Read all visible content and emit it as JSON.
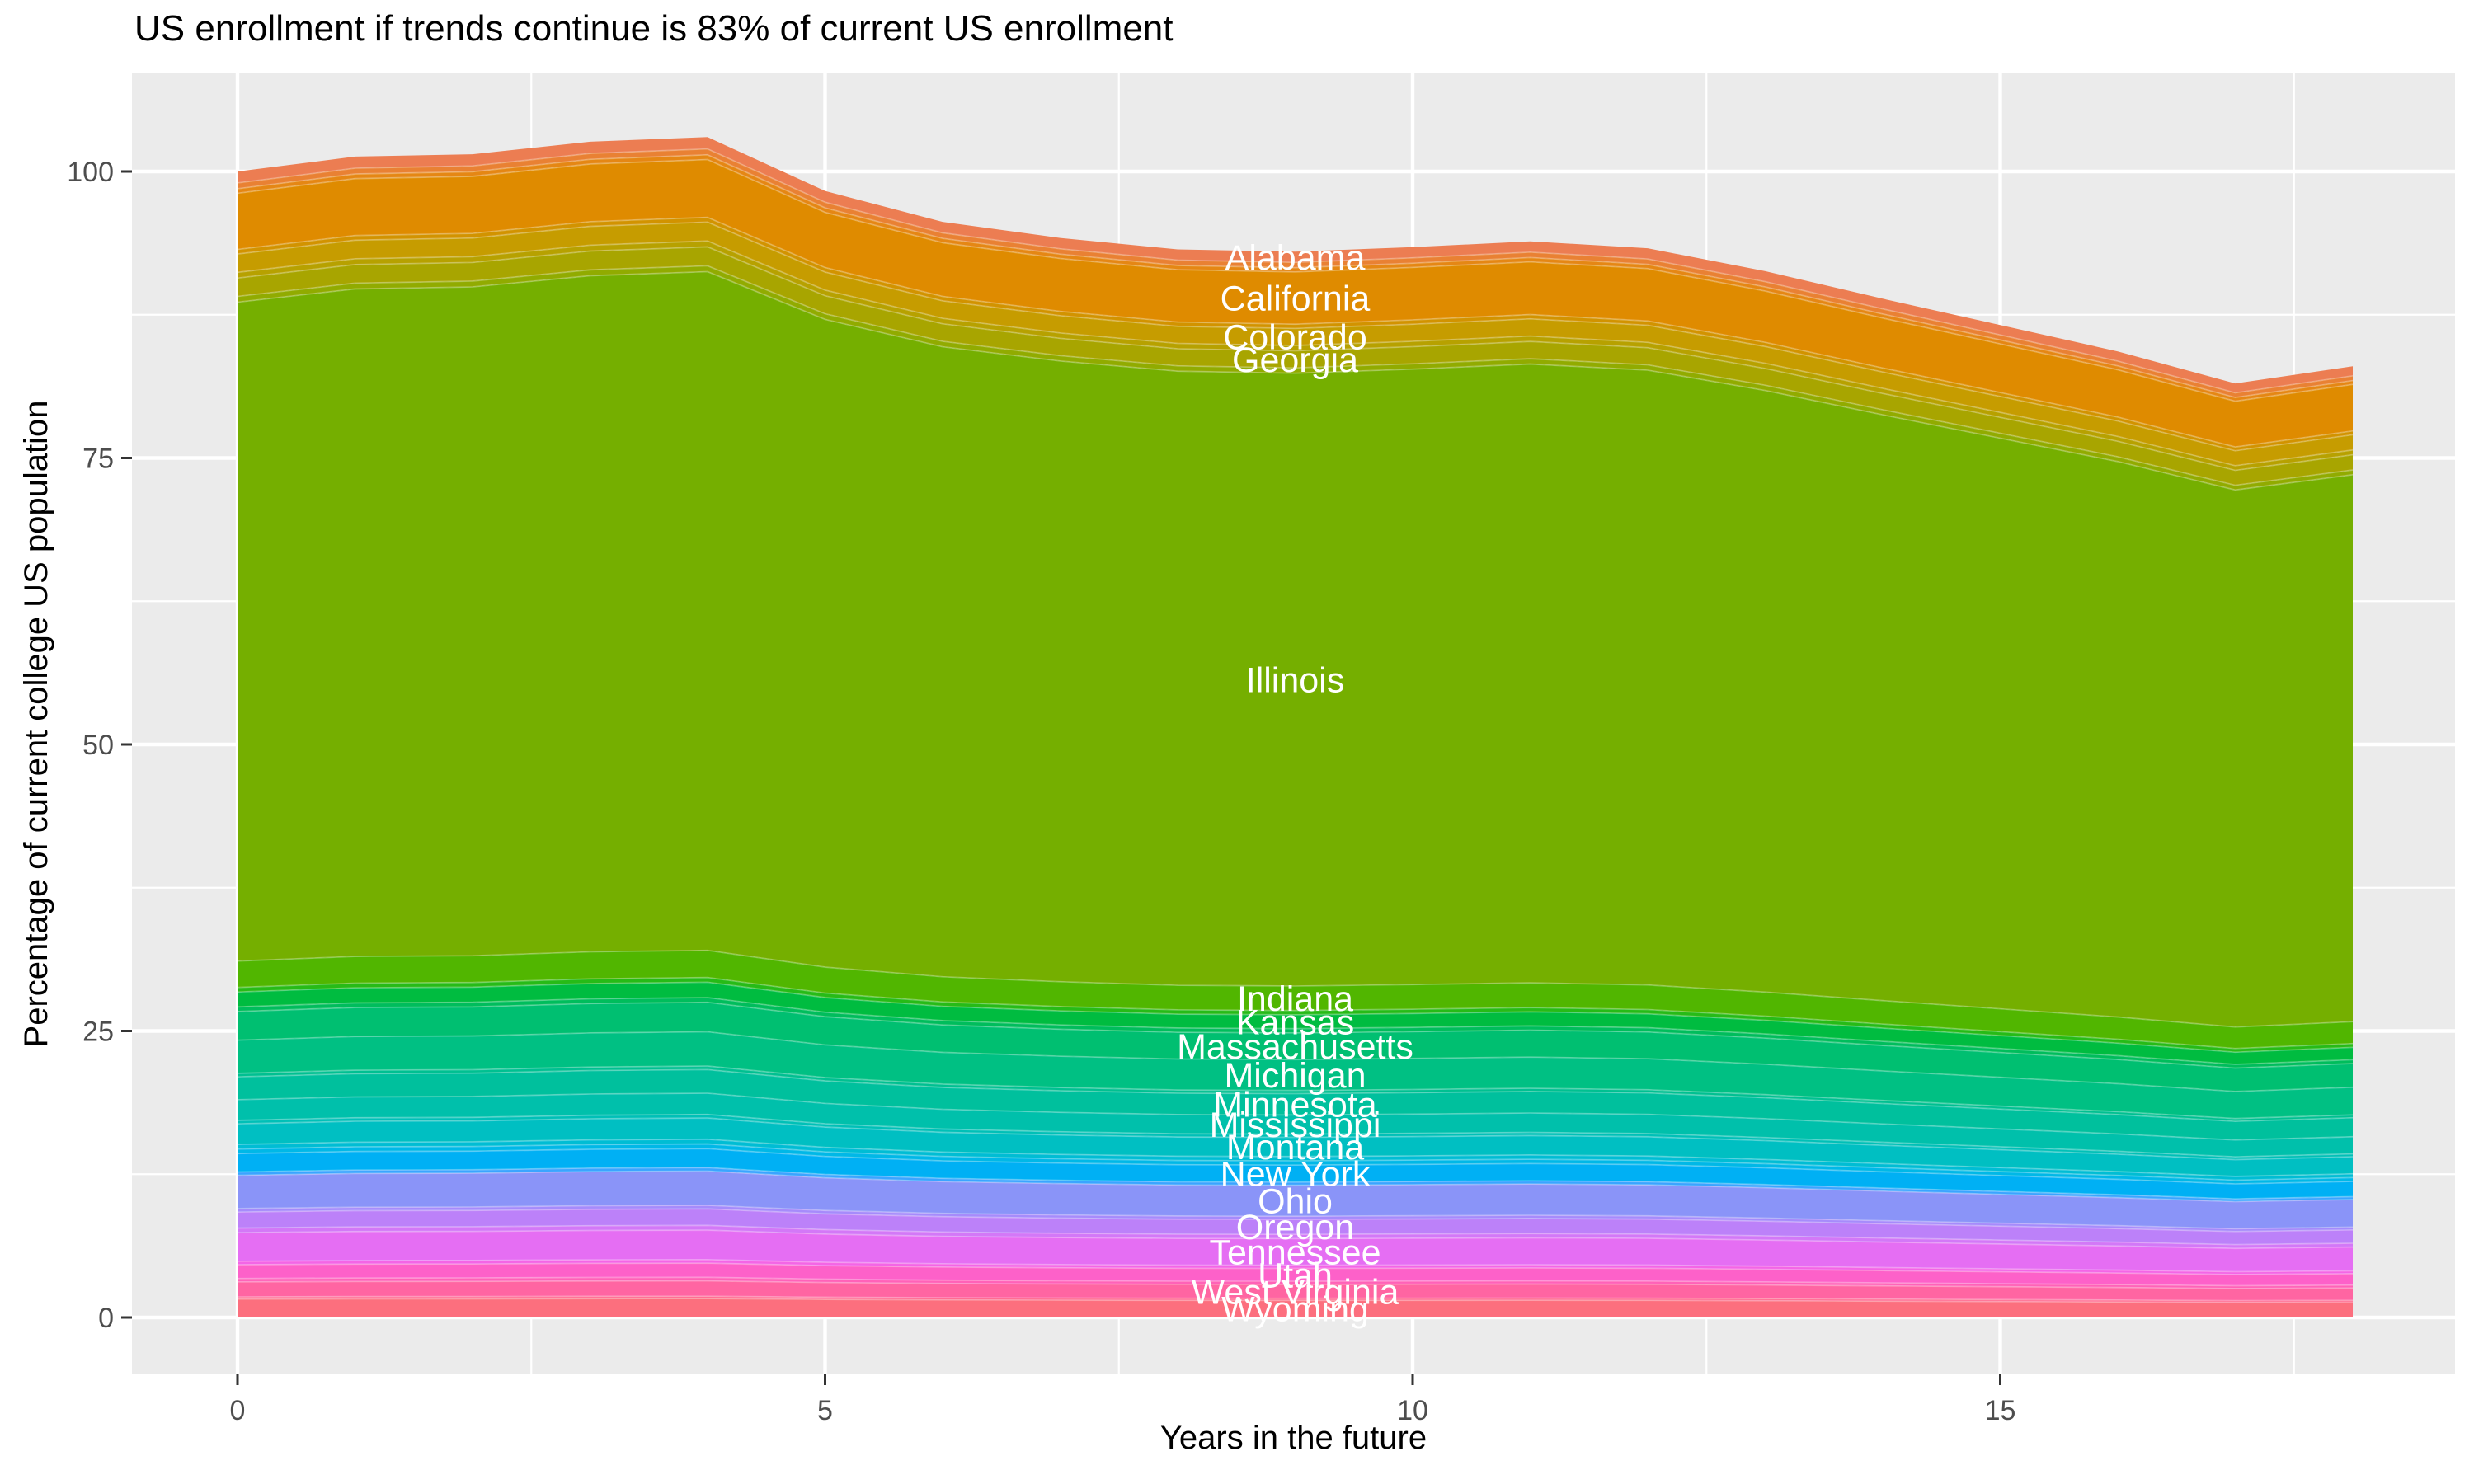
{
  "chart_data": {
    "type": "area",
    "stacked": true,
    "title": "US enrollment if trends continue is 83% of current US enrollment",
    "xlabel": "Years in the future",
    "ylabel": "Percentage of current college US population",
    "x_ticks": [
      0,
      5,
      10,
      15
    ],
    "y_ticks": [
      0,
      25,
      50,
      75,
      100
    ],
    "xlim": [
      -0.9,
      18.9
    ],
    "ylim": [
      -5.2,
      108.7
    ],
    "grid": true,
    "legend_position": "none",
    "panel_bg": "#EBEBEB",
    "grid_color": "#FFFFFF",
    "tick_label_color": "#4D4D4D",
    "tick_mark_color": "#333333",
    "state_label_color": "#FFFFFF",
    "label_x_year": 9,
    "note": "Stacked shares of current US college population by state; band value(x) = share_at_year0 * total_percent[x] / 100. Unnamed entries are thin unlabeled state bands visible as stripes.",
    "x": [
      0,
      1,
      2,
      3,
      4,
      5,
      6,
      7,
      8,
      9,
      10,
      11,
      12,
      13,
      14,
      15,
      16,
      17,
      18
    ],
    "total_percent": [
      100.0,
      101.3,
      101.5,
      102.6,
      103.0,
      98.3,
      95.6,
      94.2,
      93.2,
      93.0,
      93.4,
      93.9,
      93.3,
      91.3,
      88.9,
      86.6,
      84.3,
      81.5,
      83.0
    ],
    "end_percent_of_current": 83,
    "series": [
      {
        "name": "Alabama",
        "share_at_year0": 1.0,
        "color": "#EC7D52",
        "labeled": true
      },
      {
        "name": "",
        "share_at_year0": 0.5,
        "color": "#E98133",
        "labeled": false
      },
      {
        "name": "",
        "share_at_year0": 0.4,
        "color": "#E58714",
        "labeled": false
      },
      {
        "name": "California",
        "share_at_year0": 4.9,
        "color": "#DF8B00",
        "labeled": true
      },
      {
        "name": "",
        "share_at_year0": 0.4,
        "color": "#D29300",
        "labeled": false
      },
      {
        "name": "Colorado",
        "share_at_year0": 1.6,
        "color": "#C69C00",
        "labeled": true
      },
      {
        "name": "",
        "share_at_year0": 0.5,
        "color": "#B7A100",
        "labeled": false
      },
      {
        "name": "Georgia",
        "share_at_year0": 1.6,
        "color": "#A8A500",
        "labeled": true
      },
      {
        "name": "",
        "share_at_year0": 0.5,
        "color": "#91AB00",
        "labeled": false
      },
      {
        "name": "Illinois",
        "share_at_year0": 57.5,
        "color": "#75AF00",
        "labeled": true
      },
      {
        "name": "Indiana",
        "share_at_year0": 2.3,
        "color": "#51B600",
        "labeled": true
      },
      {
        "name": "",
        "share_at_year0": 0.4,
        "color": "#27BB17",
        "labeled": false
      },
      {
        "name": "Kansas",
        "share_at_year0": 1.3,
        "color": "#00BC40",
        "labeled": true
      },
      {
        "name": "",
        "share_at_year0": 0.4,
        "color": "#00BD5C",
        "labeled": false
      },
      {
        "name": "Massachusetts",
        "share_at_year0": 2.5,
        "color": "#00BF71",
        "labeled": true
      },
      {
        "name": "Michigan",
        "share_at_year0": 2.9,
        "color": "#00C083",
        "labeled": true
      },
      {
        "name": "",
        "share_at_year0": 0.3,
        "color": "#00C091",
        "labeled": false
      },
      {
        "name": "Minnesota",
        "share_at_year0": 2.0,
        "color": "#00C09D",
        "labeled": true
      },
      {
        "name": "Mississippi",
        "share_at_year0": 1.8,
        "color": "#00C0AB",
        "labeled": true
      },
      {
        "name": "",
        "share_at_year0": 0.3,
        "color": "#00C0B7",
        "labeled": false
      },
      {
        "name": "Montana",
        "share_at_year0": 1.8,
        "color": "#00BFC2",
        "labeled": true
      },
      {
        "name": "",
        "share_at_year0": 0.4,
        "color": "#00BDD4",
        "labeled": false
      },
      {
        "name": "",
        "share_at_year0": 0.4,
        "color": "#00B8E7",
        "labeled": false
      },
      {
        "name": "New York",
        "share_at_year0": 1.6,
        "color": "#00B0F4",
        "labeled": true
      },
      {
        "name": "",
        "share_at_year0": 0.3,
        "color": "#3AA5FF",
        "labeled": false
      },
      {
        "name": "Ohio",
        "share_at_year0": 2.9,
        "color": "#8A94F8",
        "labeled": true
      },
      {
        "name": "",
        "share_at_year0": 0.3,
        "color": "#A68BFB",
        "labeled": false
      },
      {
        "name": "Oregon",
        "share_at_year0": 1.4,
        "color": "#BC81F9",
        "labeled": true
      },
      {
        "name": "",
        "share_at_year0": 0.4,
        "color": "#D378F7",
        "labeled": false
      },
      {
        "name": "Tennessee",
        "share_at_year0": 2.5,
        "color": "#E56EF3",
        "labeled": true
      },
      {
        "name": "",
        "share_at_year0": 0.3,
        "color": "#F465E6",
        "labeled": false
      },
      {
        "name": "Utah",
        "share_at_year0": 1.2,
        "color": "#FD61C9",
        "labeled": true
      },
      {
        "name": "",
        "share_at_year0": 0.3,
        "color": "#FF62B8",
        "labeled": false
      },
      {
        "name": "West Virginia",
        "share_at_year0": 1.3,
        "color": "#FF65A2",
        "labeled": true
      },
      {
        "name": "",
        "share_at_year0": 0.2,
        "color": "#FF698E",
        "labeled": false
      },
      {
        "name": "Wyoming",
        "share_at_year0": 1.6,
        "color": "#FC6F7E",
        "labeled": true
      }
    ]
  }
}
